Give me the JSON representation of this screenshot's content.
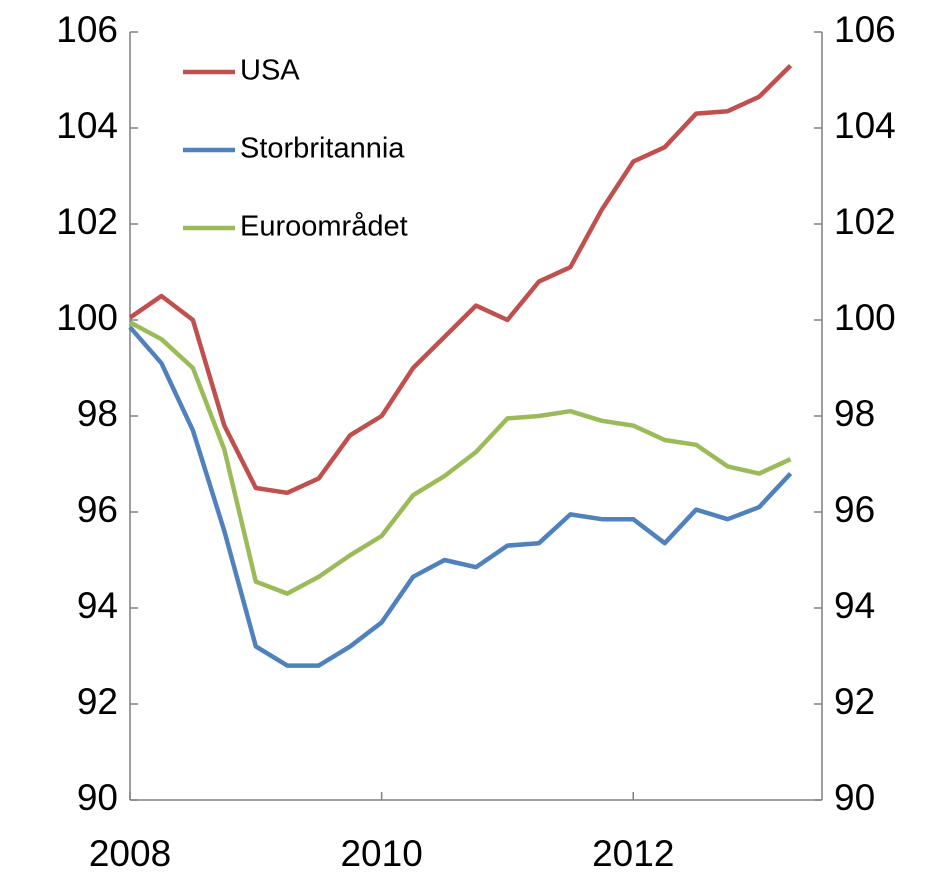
{
  "chart_data": {
    "type": "line",
    "x": [
      2008,
      2008.25,
      2008.5,
      2008.75,
      2009,
      2009.25,
      2009.5,
      2009.75,
      2010,
      2010.25,
      2010.5,
      2010.75,
      2011,
      2011.25,
      2011.5,
      2011.75,
      2012,
      2012.25,
      2012.5,
      2012.75,
      2013,
      2013.25
    ],
    "series": [
      {
        "name": "USA",
        "color": "#c0504d",
        "values": [
          100.05,
          100.5,
          100.0,
          97.8,
          96.5,
          96.4,
          96.7,
          97.6,
          98.0,
          99.0,
          99.65,
          100.3,
          100.0,
          100.8,
          101.1,
          102.3,
          103.3,
          103.6,
          104.3,
          104.35,
          104.65,
          105.3
        ]
      },
      {
        "name": "Storbritannia",
        "color": "#4f81bd",
        "values": [
          99.85,
          99.1,
          97.7,
          95.6,
          93.2,
          92.8,
          92.8,
          93.2,
          93.7,
          94.65,
          95.0,
          94.85,
          95.3,
          95.35,
          95.95,
          95.85,
          95.85,
          95.35,
          96.05,
          95.85,
          96.1,
          96.8
        ]
      },
      {
        "name": "Euroområdet",
        "color": "#9bbb59",
        "values": [
          99.95,
          99.6,
          99.0,
          97.3,
          94.55,
          94.3,
          94.65,
          95.1,
          95.5,
          96.35,
          96.75,
          97.25,
          97.95,
          98.0,
          98.1,
          97.9,
          97.8,
          97.5,
          97.4,
          96.95,
          96.8,
          97.1
        ]
      }
    ],
    "xlim": [
      2008,
      2013.5
    ],
    "xticks": [
      2008,
      2010,
      2012
    ],
    "ylim": [
      90,
      106
    ],
    "yticks": [
      90,
      92,
      94,
      96,
      98,
      100,
      102,
      104,
      106
    ],
    "y2lim": [
      90,
      106
    ],
    "y2ticks": [
      90,
      92,
      94,
      96,
      98,
      100,
      102,
      104,
      106
    ],
    "legend": "upper-left"
  }
}
